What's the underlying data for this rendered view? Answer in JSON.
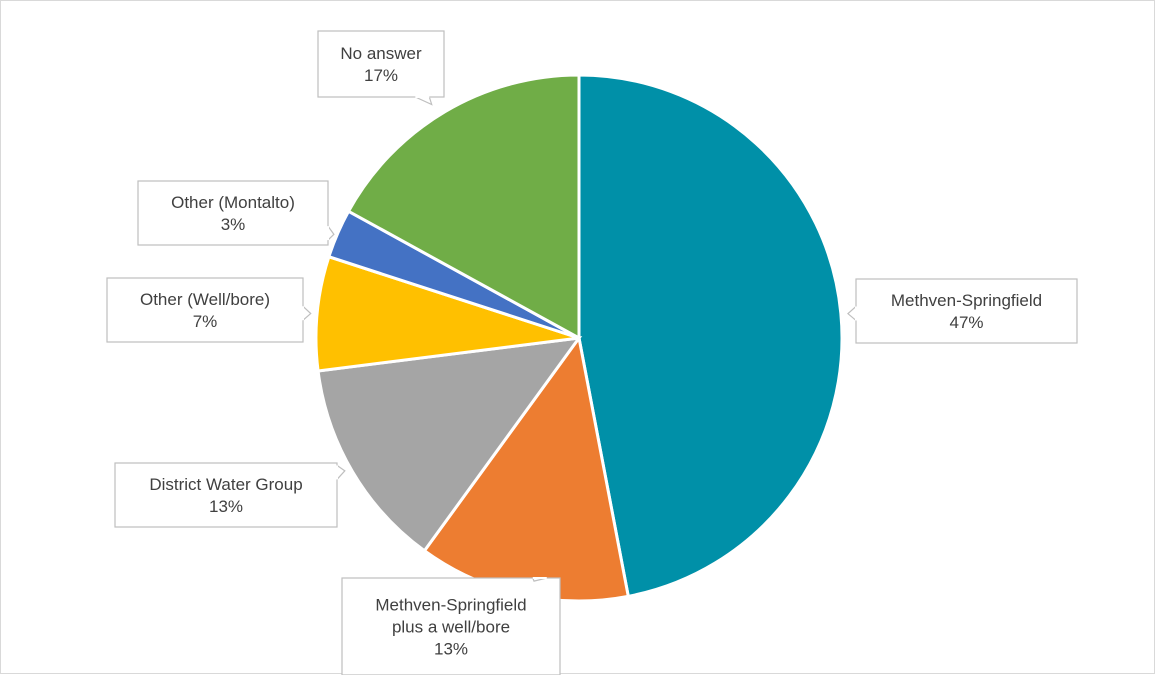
{
  "chart_data": {
    "type": "pie",
    "start_angle_deg": 0,
    "direction": "clockwise",
    "show_legend": false,
    "slices": [
      {
        "label": "Methven-Springfield",
        "value": 47,
        "display": "47%",
        "color": "#0090a8"
      },
      {
        "label": "Methven-Springfield plus a well/bore",
        "value": 13,
        "display": "13%",
        "color": "#ed7d31"
      },
      {
        "label": "District Water Group",
        "value": 13,
        "display": "13%",
        "color": "#a5a5a5"
      },
      {
        "label": "Other (Well/bore)",
        "value": 7,
        "display": "7%",
        "color": "#ffc000"
      },
      {
        "label": "Other (Montalto)",
        "value": 3,
        "display": "3%",
        "color": "#4472c4"
      },
      {
        "label": "No answer",
        "value": 17,
        "display": "17%",
        "color": "#70ad47"
      }
    ]
  }
}
